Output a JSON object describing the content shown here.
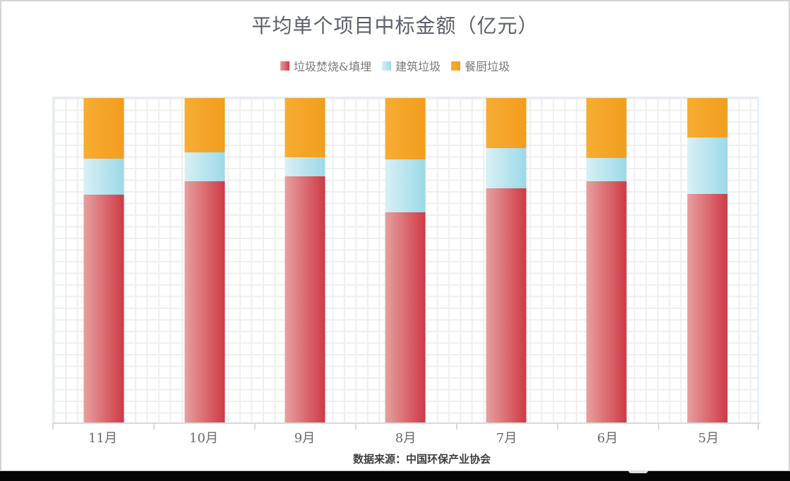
{
  "chart": {
    "source_note": "数据来源：中国环保产业协会"
  },
  "chart_data": {
    "type": "bar",
    "subtype": "stacked-percentage",
    "title": "平均单个项目中标金额（亿元）",
    "categories": [
      "11月",
      "10月",
      "9月",
      "8月",
      "7月",
      "6月",
      "5月"
    ],
    "series": [
      {
        "name": "垃圾焚烧&填埋",
        "color_from": "#e7a0a0",
        "color_to": "#ce3a45",
        "values": [
          70.3,
          74.5,
          76.0,
          64.9,
          72.3,
          74.5,
          70.6
        ]
      },
      {
        "name": "建筑垃圾",
        "color_from": "#d8f0f5",
        "color_to": "#9cd9e8",
        "values": [
          11.0,
          8.7,
          5.8,
          16.2,
          12.3,
          7.1,
          17.3
        ]
      },
      {
        "name": "餐厨垃圾",
        "color_from": "#f6ac33",
        "color_to": "#f19e1e",
        "values": [
          18.7,
          16.8,
          18.2,
          18.9,
          15.4,
          18.4,
          12.1
        ]
      }
    ],
    "stack_order_bottom_to_top": [
      "垃圾焚烧&填埋",
      "建筑垃圾",
      "餐厨垃圾"
    ],
    "value_unit": "percent of bar total (bars normalized to 100%)",
    "xlabel": "",
    "ylabel": "",
    "y_axis_labels_visible": false,
    "ylim": [
      0,
      100
    ],
    "grid": true,
    "legend_position": "top-center"
  }
}
